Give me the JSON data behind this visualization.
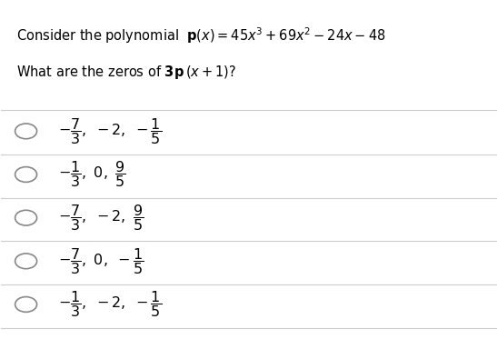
{
  "background_color": "#ffffff",
  "title_line1": "Consider the polynomial  $\\mathbf{p}(x) = 45x^3 + 69x^2 - 24x - 48$",
  "title_line2": "What are the zeros of $\\mathbf{3p}\\,(x + 1)$?",
  "options": [
    "$-\\dfrac{7}{3},\\ -2,\\ -\\dfrac{1}{5}$",
    "$-\\dfrac{1}{3},\\ 0,\\ \\dfrac{9}{5}$",
    "$-\\dfrac{7}{3},\\ -2,\\ \\dfrac{9}{5}$",
    "$-\\dfrac{7}{3},\\ 0,\\ -\\dfrac{1}{5}$",
    "$-\\dfrac{1}{3},\\ -2,\\ -\\dfrac{1}{5}$"
  ],
  "divider_color": "#cccccc",
  "text_color": "#000000",
  "circle_color": "#888888",
  "fig_width": 5.47,
  "fig_height": 3.84,
  "dpi": 100
}
